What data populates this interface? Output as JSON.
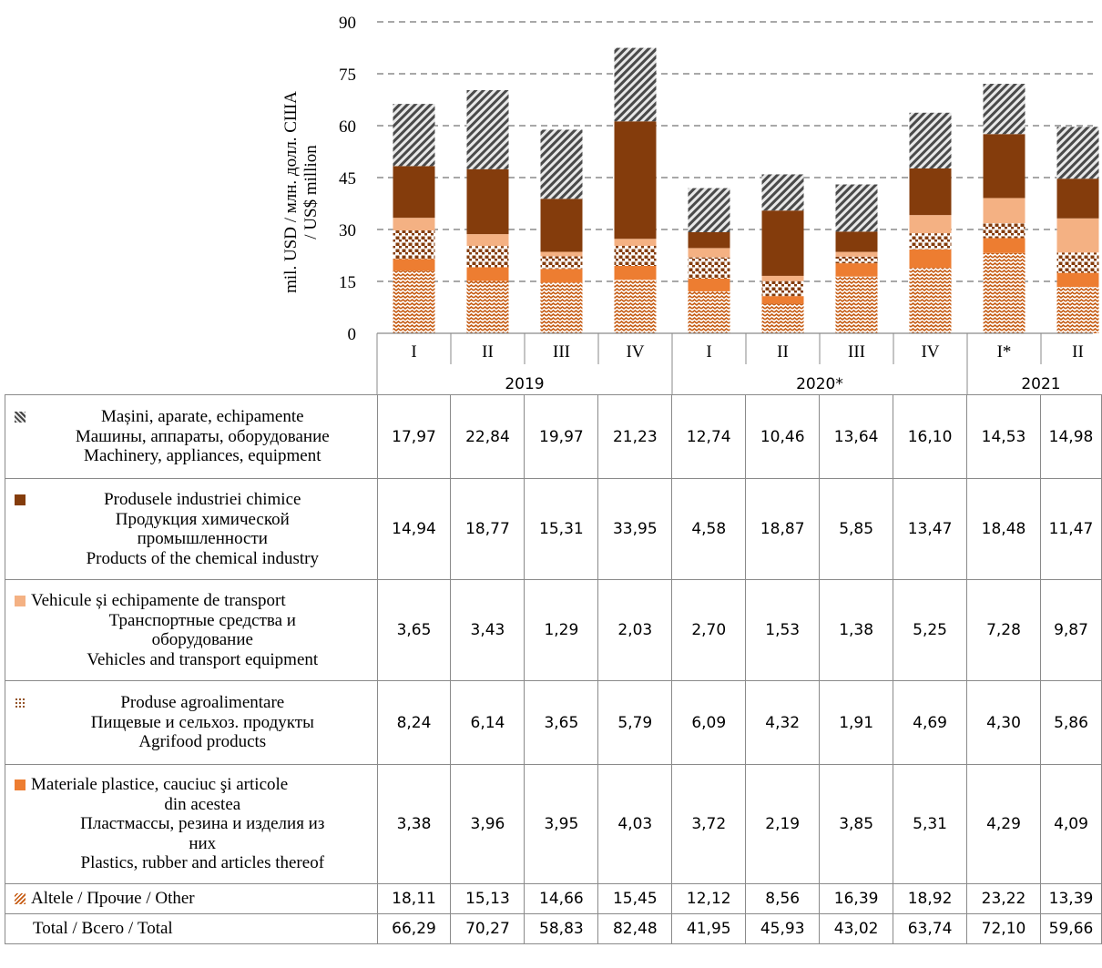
{
  "chart_data": {
    "type": "bar",
    "stacked": true,
    "ylabel_lines": [
      "mil. USD / млн. долл. США",
      "/ US$ million"
    ],
    "ylim": [
      0,
      90
    ],
    "yticks": [
      0,
      15,
      30,
      45,
      60,
      75,
      90
    ],
    "grid": "horizontal dashed",
    "quarters": [
      "I",
      "II",
      "III",
      "IV",
      "I",
      "II",
      "III",
      "IV",
      "I*",
      "II"
    ],
    "years": [
      {
        "label": "2019",
        "span": 4
      },
      {
        "label": "2020*",
        "span": 4
      },
      {
        "label": "2021",
        "span": 2
      }
    ],
    "series": [
      {
        "key": "machinery",
        "name_lines": [
          "Mașini, aparate, echipamente",
          "Машины, аппараты, оборудование",
          "Machinery, appliances, equipment"
        ],
        "color": "#595959",
        "values": [
          17.97,
          22.84,
          19.97,
          21.23,
          12.74,
          10.46,
          13.64,
          16.1,
          14.53,
          14.98
        ],
        "display": [
          "17,97",
          "22,84",
          "19,97",
          "21,23",
          "12,74",
          "10,46",
          "13,64",
          "16,10",
          "14,53",
          "14,98"
        ]
      },
      {
        "key": "chemical",
        "name_lines": [
          "Produsele industriei chimice",
          "Продукция химической",
          "промышленности",
          "Products of the chemical industry"
        ],
        "color": "#843c0c",
        "values": [
          14.94,
          18.77,
          15.31,
          33.95,
          4.58,
          18.87,
          5.85,
          13.47,
          18.48,
          11.47
        ],
        "display": [
          "14,94",
          "18,77",
          "15,31",
          "33,95",
          "4,58",
          "18,87",
          "5,85",
          "13,47",
          "18,48",
          "11,47"
        ]
      },
      {
        "key": "vehicles",
        "name_lines": [
          "Vehicule și echipamente de transport",
          "Транспортные средства и",
          "оборудование",
          "Vehicles and transport equipment"
        ],
        "color": "#f4b183",
        "values": [
          3.65,
          3.43,
          1.29,
          2.03,
          2.7,
          1.53,
          1.38,
          5.25,
          7.28,
          9.87
        ],
        "display": [
          "3,65",
          "3,43",
          "1,29",
          "2,03",
          "2,70",
          "1,53",
          "1,38",
          "5,25",
          "7,28",
          "9,87"
        ]
      },
      {
        "key": "agrifood",
        "name_lines": [
          "Produse agroalimentare",
          "Пищевые и сельхоз. продукты",
          "Agrifood products"
        ],
        "color": "#843c0c",
        "values": [
          8.24,
          6.14,
          3.65,
          5.79,
          6.09,
          4.32,
          1.91,
          4.69,
          4.3,
          5.86
        ],
        "display": [
          "8,24",
          "6,14",
          "3,65",
          "5,79",
          "6,09",
          "4,32",
          "1,91",
          "4,69",
          "4,30",
          "5,86"
        ]
      },
      {
        "key": "plastics",
        "name_lines": [
          "Materiale plastice, cauciuc şi articole",
          "din acestea",
          "Пластмассы, резина и изделия из",
          "них",
          "Plastics, rubber and articles thereof"
        ],
        "color": "#ed7d31",
        "values": [
          3.38,
          3.96,
          3.95,
          4.03,
          3.72,
          2.19,
          3.85,
          5.31,
          4.29,
          4.09
        ],
        "display": [
          "3,38",
          "3,96",
          "3,95",
          "4,03",
          "3,72",
          "2,19",
          "3,85",
          "5,31",
          "4,29",
          "4,09"
        ]
      },
      {
        "key": "other",
        "name_lines": [
          "Altele / Прочие / Other"
        ],
        "color": "#c55a11",
        "values": [
          18.11,
          15.13,
          14.66,
          15.45,
          12.12,
          8.56,
          16.39,
          18.92,
          23.22,
          13.39
        ],
        "display": [
          "18,11",
          "15,13",
          "14,66",
          "15,45",
          "12,12",
          "8,56",
          "16,39",
          "18,92",
          "23,22",
          "13,39"
        ]
      }
    ],
    "total": {
      "label": "Total / Всего / Total",
      "values": [
        66.29,
        70.27,
        58.83,
        82.48,
        41.95,
        45.93,
        43.02,
        63.74,
        72.1,
        59.66
      ],
      "display": [
        "66,29",
        "70,27",
        "58,83",
        "82,48",
        "41,95",
        "45,93",
        "43,02",
        "63,74",
        "72,10",
        "59,66"
      ]
    }
  }
}
